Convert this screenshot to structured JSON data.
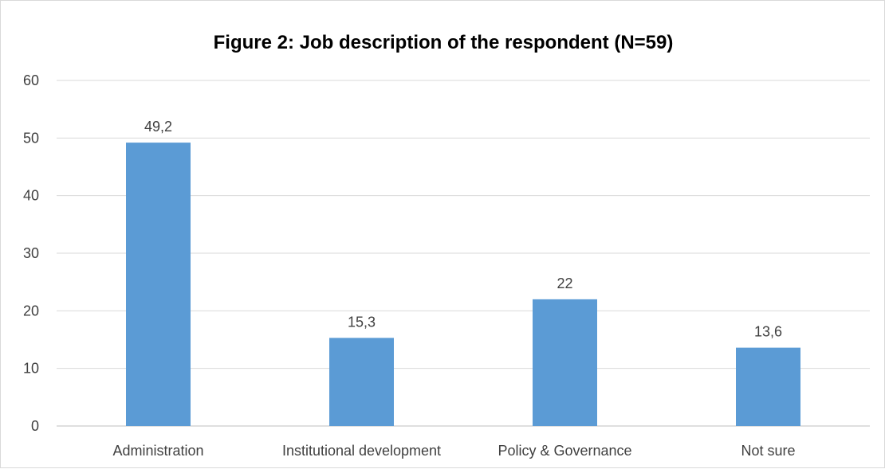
{
  "chart_data": {
    "type": "bar",
    "title": "Figure 2: Job description of the respondent (N=59)",
    "categories": [
      "Administration",
      "Institutional development",
      "Policy & Governance",
      "Not sure"
    ],
    "values": [
      49.2,
      15.3,
      22,
      13.6
    ],
    "data_labels": [
      "49,2",
      "15,3",
      "22",
      "13,6"
    ],
    "xlabel": "",
    "ylabel": "",
    "ylim": [
      0,
      60
    ],
    "yticks": [
      0,
      10,
      20,
      30,
      40,
      50,
      60
    ],
    "grid": true,
    "legend": "none",
    "bar_color": "#5b9bd5"
  }
}
